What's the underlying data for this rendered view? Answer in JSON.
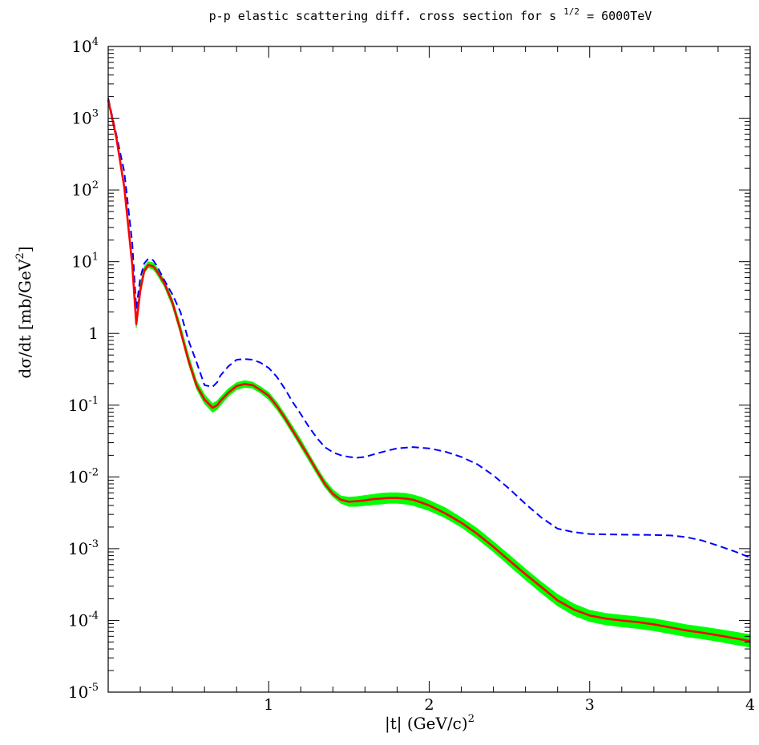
{
  "chart_data": {
    "type": "line",
    "title": {
      "prefix": "p-p elastic scattering diff. cross section for s",
      "exponent": "1/2",
      "suffix": "= 6000TeV"
    },
    "xlabel": {
      "text": "|t| (GeV/c)",
      "exponent": "2"
    },
    "ylabel": {
      "text": "dσ/dt [mb/GeV",
      "exponent": "2",
      "close": "]"
    },
    "xlim": [
      0,
      4
    ],
    "ylim": [
      1e-05,
      10000
    ],
    "yscale": "log",
    "grid": false,
    "x_ticks": [
      {
        "value": 1,
        "label": "1"
      },
      {
        "value": 2,
        "label": "2"
      },
      {
        "value": 3,
        "label": "3"
      },
      {
        "value": 4,
        "label": "4"
      }
    ],
    "y_ticks": [
      {
        "exp": -5,
        "base": "10",
        "sup": "-5",
        "plain": ""
      },
      {
        "exp": -4,
        "base": "10",
        "sup": "-4",
        "plain": ""
      },
      {
        "exp": -3,
        "base": "10",
        "sup": "-3",
        "plain": ""
      },
      {
        "exp": -2,
        "base": "10",
        "sup": "-2",
        "plain": ""
      },
      {
        "exp": -1,
        "base": "10",
        "sup": "-1",
        "plain": ""
      },
      {
        "exp": 0,
        "base": "",
        "sup": "",
        "plain": "1"
      },
      {
        "exp": 1,
        "base": "10",
        "sup": "1",
        "plain": ""
      },
      {
        "exp": 2,
        "base": "10",
        "sup": "2",
        "plain": ""
      },
      {
        "exp": 3,
        "base": "10",
        "sup": "3",
        "plain": ""
      },
      {
        "exp": 4,
        "base": "10",
        "sup": "4",
        "plain": ""
      }
    ],
    "band": {
      "color": "#00ff00",
      "x": [
        0.0,
        0.05,
        0.1,
        0.15,
        0.175,
        0.2,
        0.225,
        0.25,
        0.28,
        0.3,
        0.35,
        0.4,
        0.45,
        0.5,
        0.55,
        0.6,
        0.65,
        0.68,
        0.7,
        0.75,
        0.8,
        0.85,
        0.9,
        0.95,
        1.0,
        1.05,
        1.1,
        1.15,
        1.2,
        1.25,
        1.3,
        1.35,
        1.4,
        1.45,
        1.5,
        1.55,
        1.6,
        1.65,
        1.7,
        1.75,
        1.8,
        1.85,
        1.9,
        1.95,
        2.0,
        2.1,
        2.2,
        2.3,
        2.4,
        2.5,
        2.6,
        2.7,
        2.8,
        2.9,
        3.0,
        3.1,
        3.2,
        3.3,
        3.4,
        3.5,
        3.6,
        3.7,
        3.8,
        3.9,
        4.0
      ],
      "upper": [
        1900,
        600,
        120,
        10,
        1.6,
        4.8,
        8.5,
        10,
        9.6,
        8.5,
        5.5,
        3.0,
        1.3,
        0.5,
        0.22,
        0.14,
        0.105,
        0.115,
        0.13,
        0.17,
        0.205,
        0.22,
        0.21,
        0.18,
        0.15,
        0.11,
        0.075,
        0.05,
        0.033,
        0.021,
        0.0135,
        0.009,
        0.0066,
        0.0054,
        0.0052,
        0.0053,
        0.0055,
        0.0057,
        0.0059,
        0.006,
        0.006,
        0.0059,
        0.0056,
        0.0052,
        0.0047,
        0.0037,
        0.0027,
        0.0019,
        0.00125,
        0.00081,
        0.00052,
        0.00034,
        0.00023,
        0.00017,
        0.000138,
        0.000125,
        0.000118,
        0.000112,
        0.000105,
        9.6e-05,
        8.7e-05,
        8.1e-05,
        7.5e-05,
        6.9e-05,
        6.3e-05
      ],
      "lower": [
        1700,
        500,
        100,
        8.5,
        1.2,
        3.5,
        7.0,
        8.3,
        7.8,
        6.9,
        4.5,
        2.4,
        1.0,
        0.38,
        0.17,
        0.105,
        0.08,
        0.088,
        0.1,
        0.135,
        0.165,
        0.178,
        0.172,
        0.148,
        0.12,
        0.088,
        0.06,
        0.04,
        0.026,
        0.017,
        0.011,
        0.0072,
        0.0053,
        0.0043,
        0.0039,
        0.0039,
        0.004,
        0.0041,
        0.0042,
        0.0043,
        0.0043,
        0.0042,
        0.004,
        0.0037,
        0.0034,
        0.0027,
        0.002,
        0.00138,
        0.00091,
        0.00058,
        0.00037,
        0.00024,
        0.00016,
        0.000118,
        9.65e-05,
        8.7e-05,
        8.15e-05,
        7.75e-05,
        7.2e-05,
        6.55e-05,
        5.95e-05,
        5.55e-05,
        5.1e-05,
        4.65e-05,
        4.25e-05
      ]
    },
    "series": [
      {
        "color": "#0000ff",
        "style": "dashed",
        "x": [
          0.0,
          0.05,
          0.1,
          0.15,
          0.175,
          0.2,
          0.225,
          0.25,
          0.28,
          0.3,
          0.35,
          0.4,
          0.45,
          0.5,
          0.55,
          0.6,
          0.65,
          0.68,
          0.7,
          0.75,
          0.8,
          0.85,
          0.9,
          0.95,
          1.0,
          1.05,
          1.1,
          1.15,
          1.2,
          1.25,
          1.3,
          1.35,
          1.4,
          1.45,
          1.5,
          1.55,
          1.6,
          1.65,
          1.7,
          1.75,
          1.8,
          1.85,
          1.9,
          1.95,
          2.0,
          2.1,
          2.2,
          2.3,
          2.4,
          2.5,
          2.6,
          2.7,
          2.8,
          2.9,
          3.0,
          3.1,
          3.2,
          3.3,
          3.4,
          3.5,
          3.6,
          3.7,
          3.8,
          3.9,
          4.0
        ],
        "y": [
          1900,
          600,
          180,
          18,
          2.2,
          6.0,
          9.5,
          11,
          10.5,
          9.0,
          5.5,
          3.5,
          2.0,
          0.8,
          0.4,
          0.19,
          0.18,
          0.21,
          0.26,
          0.35,
          0.43,
          0.44,
          0.43,
          0.39,
          0.33,
          0.25,
          0.17,
          0.11,
          0.075,
          0.05,
          0.035,
          0.026,
          0.022,
          0.02,
          0.019,
          0.0185,
          0.019,
          0.0205,
          0.022,
          0.0235,
          0.025,
          0.0255,
          0.026,
          0.0255,
          0.025,
          0.0225,
          0.019,
          0.015,
          0.0105,
          0.0068,
          0.0042,
          0.0027,
          0.0019,
          0.0017,
          0.0016,
          0.00158,
          0.00157,
          0.00156,
          0.00155,
          0.00153,
          0.00145,
          0.0013,
          0.0011,
          0.00092,
          0.00075
        ]
      },
      {
        "color": "#ff0000",
        "style": "solid",
        "x": [
          0.0,
          0.05,
          0.1,
          0.15,
          0.175,
          0.2,
          0.225,
          0.25,
          0.28,
          0.3,
          0.35,
          0.4,
          0.45,
          0.5,
          0.55,
          0.6,
          0.65,
          0.68,
          0.7,
          0.75,
          0.8,
          0.85,
          0.9,
          0.95,
          1.0,
          1.05,
          1.1,
          1.15,
          1.2,
          1.25,
          1.3,
          1.35,
          1.4,
          1.45,
          1.5,
          1.55,
          1.6,
          1.65,
          1.7,
          1.75,
          1.8,
          1.85,
          1.9,
          1.95,
          2.0,
          2.1,
          2.2,
          2.3,
          2.4,
          2.5,
          2.6,
          2.7,
          2.8,
          2.9,
          3.0,
          3.1,
          3.2,
          3.3,
          3.4,
          3.5,
          3.6,
          3.7,
          3.8,
          3.9,
          4.0
        ],
        "y": [
          1800,
          550,
          110,
          9.0,
          1.35,
          4.0,
          7.5,
          9.0,
          8.6,
          7.6,
          5.0,
          2.7,
          1.1,
          0.42,
          0.19,
          0.12,
          0.092,
          0.1,
          0.115,
          0.15,
          0.185,
          0.197,
          0.19,
          0.162,
          0.135,
          0.098,
          0.067,
          0.044,
          0.029,
          0.019,
          0.0122,
          0.008,
          0.0058,
          0.0048,
          0.0045,
          0.0046,
          0.0047,
          0.0049,
          0.005,
          0.0051,
          0.0051,
          0.005,
          0.0048,
          0.0044,
          0.004,
          0.0031,
          0.0023,
          0.0016,
          0.00106,
          0.00068,
          0.00044,
          0.00029,
          0.00019,
          0.000142,
          0.000117,
          0.000106,
          9.95e-05,
          9.45e-05,
          8.8e-05,
          8e-05,
          7.25e-05,
          6.75e-05,
          6.2e-05,
          5.65e-05,
          5.15e-05
        ]
      }
    ]
  }
}
